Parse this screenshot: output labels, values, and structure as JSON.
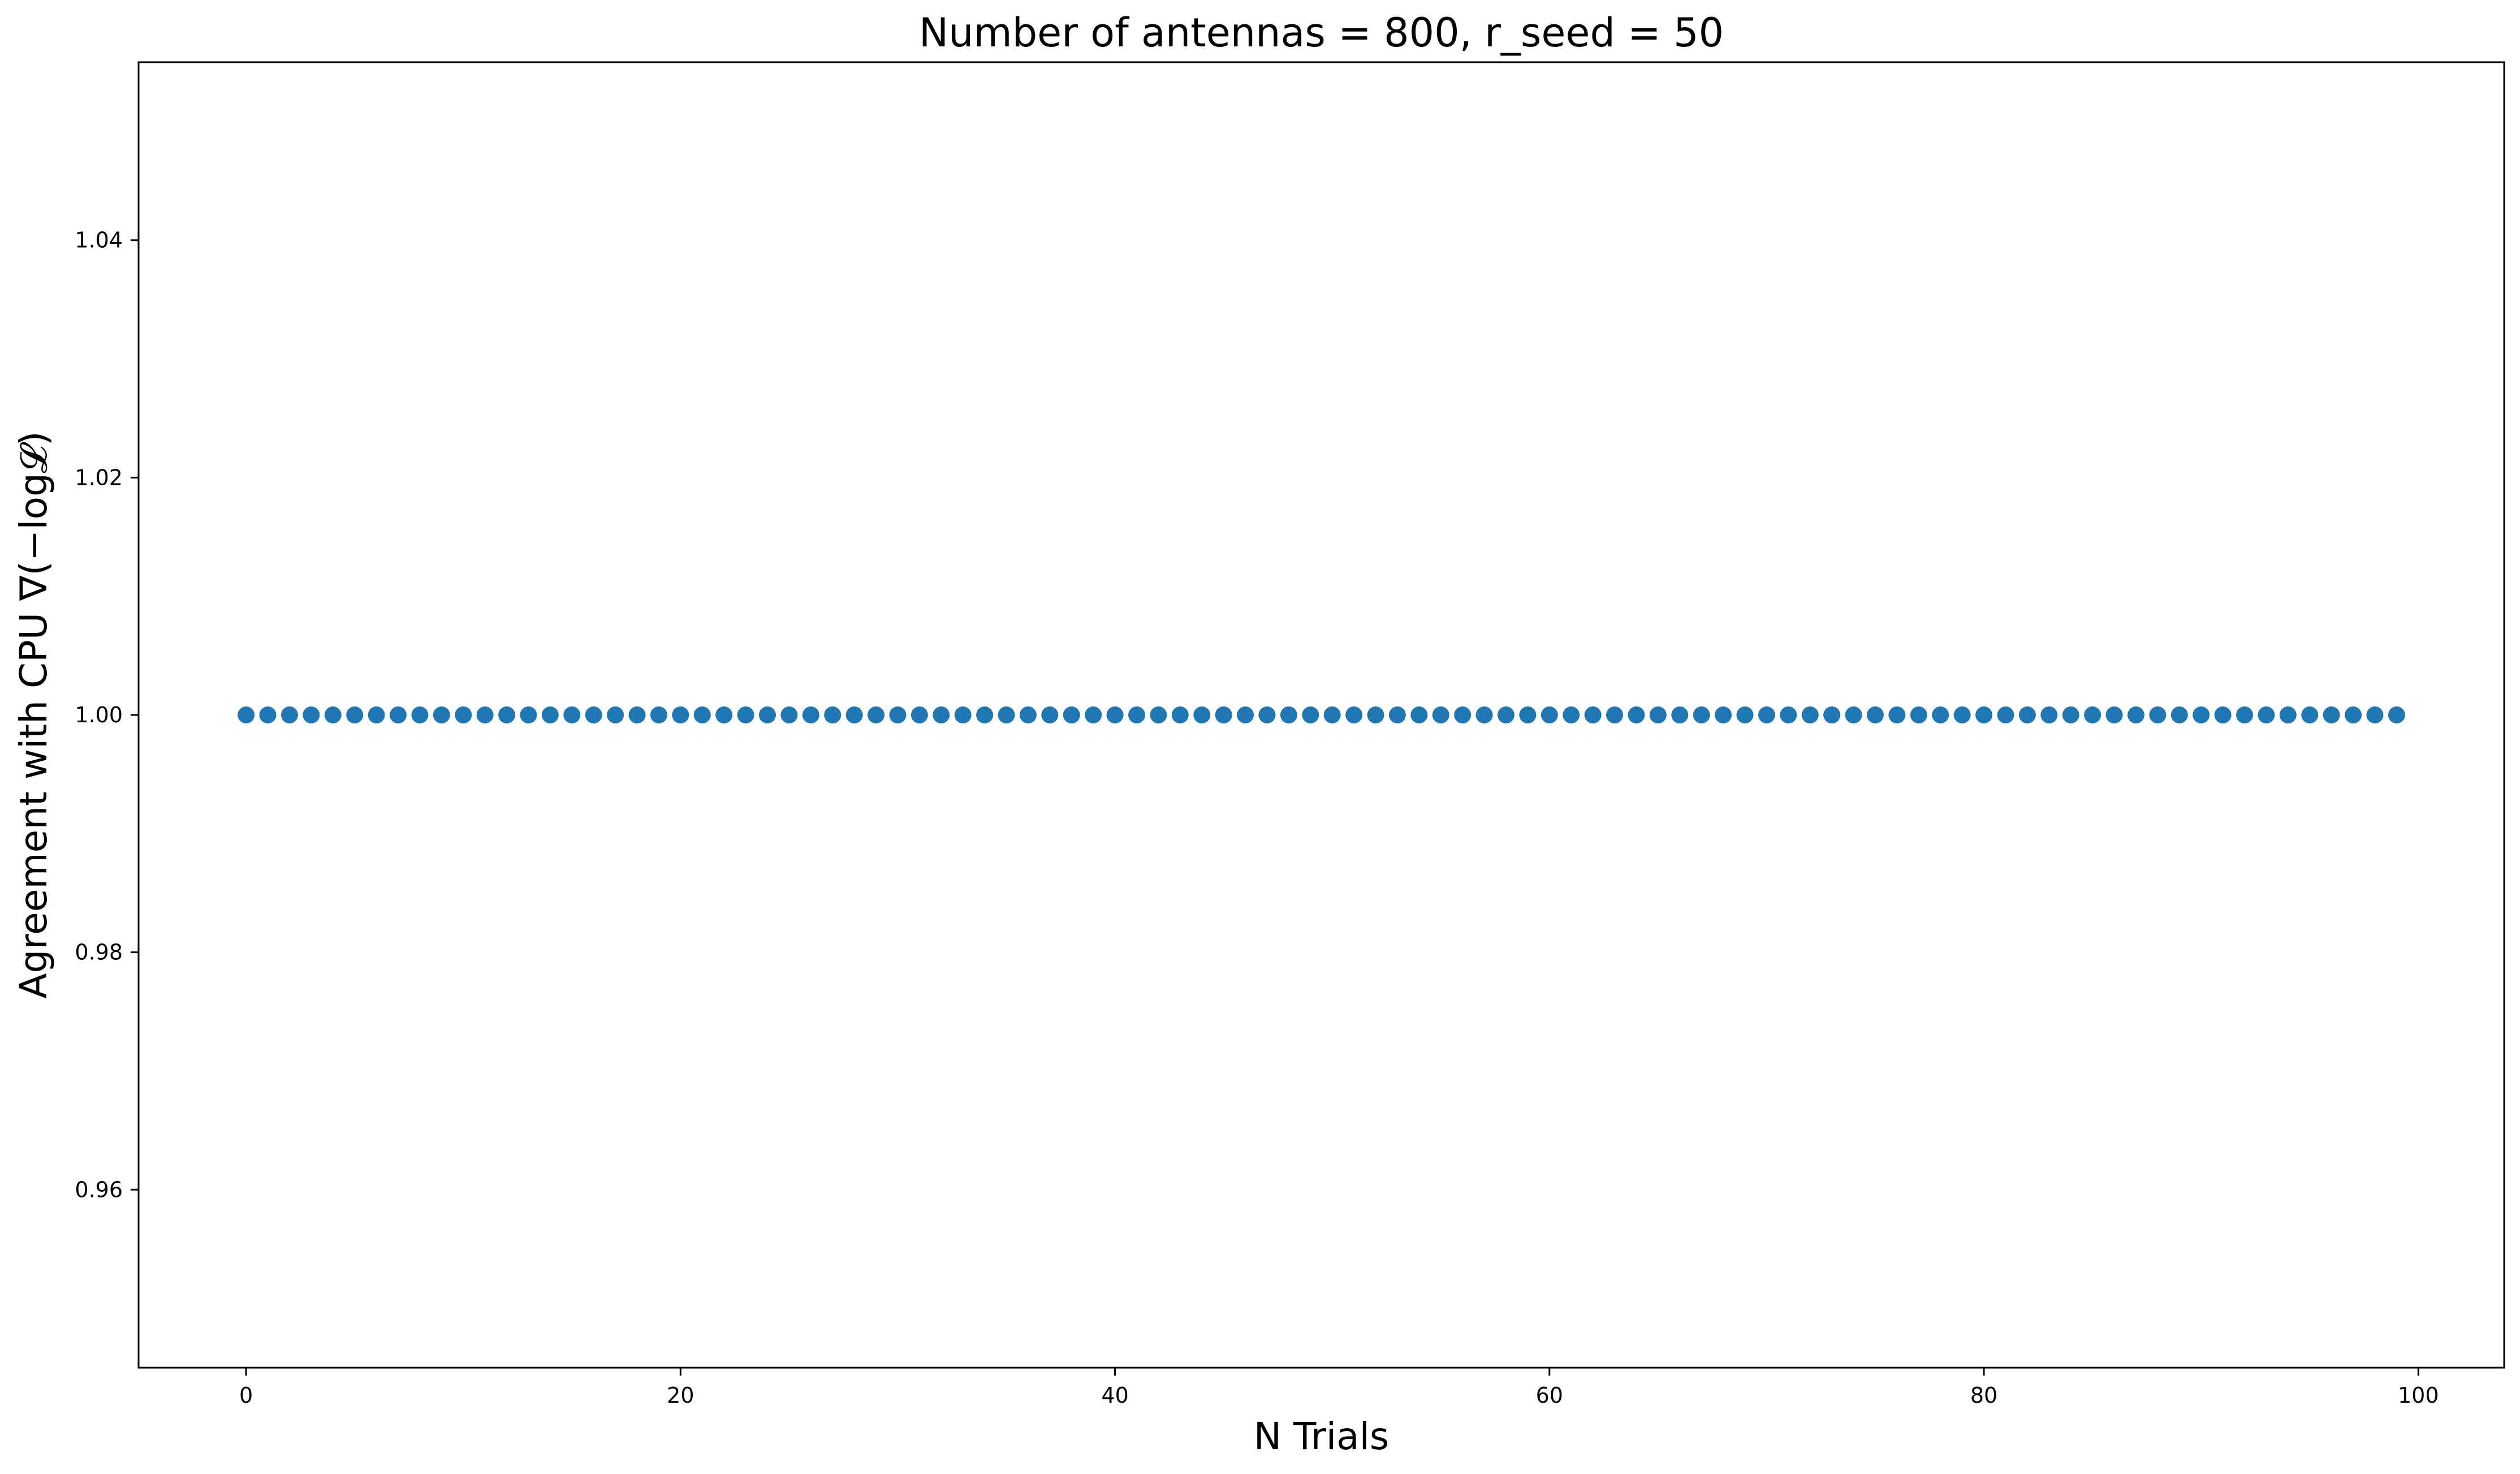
{
  "chart_data": {
    "type": "scatter",
    "title": "Number of antennas = 800, r_seed = 50",
    "xlabel": "N Trials",
    "ylabel": "Agreement with CPU ∇(−log𝓛)",
    "xlim": [
      -4.95,
      103.95
    ],
    "ylim": [
      0.945,
      1.055
    ],
    "xticks": [
      0,
      20,
      40,
      60,
      80,
      100
    ],
    "xtick_labels": [
      "0",
      "20",
      "40",
      "60",
      "80",
      "100"
    ],
    "yticks": [
      0.96,
      0.98,
      1.0,
      1.02,
      1.04
    ],
    "ytick_labels": [
      "0.96",
      "0.98",
      "1.00",
      "1.02",
      "1.04"
    ],
    "grid": false,
    "legend": "none",
    "series": [
      {
        "color": "#1f77b4",
        "x": [
          0,
          1,
          2,
          3,
          4,
          5,
          6,
          7,
          8,
          9,
          10,
          11,
          12,
          13,
          14,
          15,
          16,
          17,
          18,
          19,
          20,
          21,
          22,
          23,
          24,
          25,
          26,
          27,
          28,
          29,
          30,
          31,
          32,
          33,
          34,
          35,
          36,
          37,
          38,
          39,
          40,
          41,
          42,
          43,
          44,
          45,
          46,
          47,
          48,
          49,
          50,
          51,
          52,
          53,
          54,
          55,
          56,
          57,
          58,
          59,
          60,
          61,
          62,
          63,
          64,
          65,
          66,
          67,
          68,
          69,
          70,
          71,
          72,
          73,
          74,
          75,
          76,
          77,
          78,
          79,
          80,
          81,
          82,
          83,
          84,
          85,
          86,
          87,
          88,
          89,
          90,
          91,
          92,
          93,
          94,
          95,
          96,
          97,
          98,
          99
        ],
        "y": [
          1,
          1,
          1,
          1,
          1,
          1,
          1,
          1,
          1,
          1,
          1,
          1,
          1,
          1,
          1,
          1,
          1,
          1,
          1,
          1,
          1,
          1,
          1,
          1,
          1,
          1,
          1,
          1,
          1,
          1,
          1,
          1,
          1,
          1,
          1,
          1,
          1,
          1,
          1,
          1,
          1,
          1,
          1,
          1,
          1,
          1,
          1,
          1,
          1,
          1,
          1,
          1,
          1,
          1,
          1,
          1,
          1,
          1,
          1,
          1,
          1,
          1,
          1,
          1,
          1,
          1,
          1,
          1,
          1,
          1,
          1,
          1,
          1,
          1,
          1,
          1,
          1,
          1,
          1,
          1,
          1,
          1,
          1,
          1,
          1,
          1,
          1,
          1,
          1,
          1,
          1,
          1,
          1,
          1,
          1,
          1,
          1,
          1,
          1,
          1
        ]
      }
    ]
  }
}
